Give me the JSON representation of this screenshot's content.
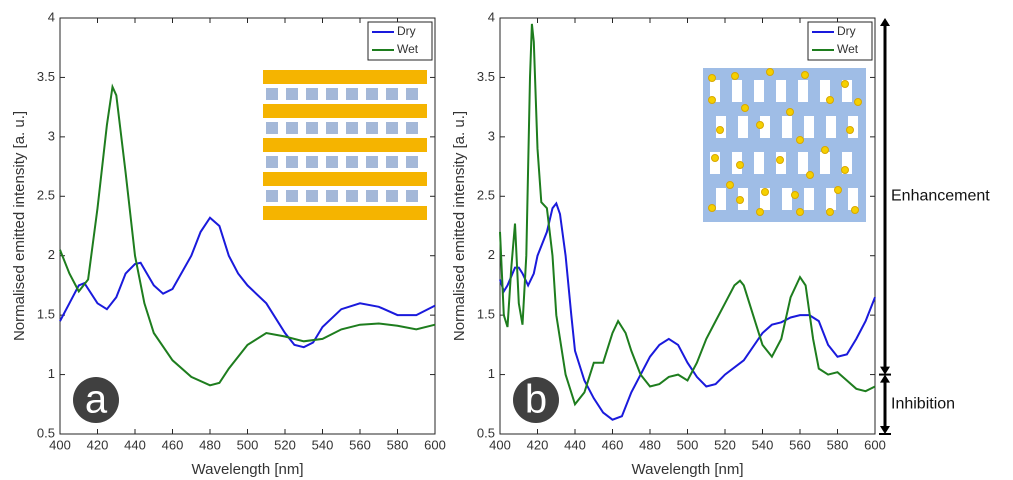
{
  "chart_data": [
    {
      "type": "line",
      "panel_label": "a",
      "xlabel": "Wavelength [nm]",
      "ylabel": "Normalised emitted intensity [a. u.]",
      "xlim": [
        400,
        600
      ],
      "ylim": [
        0.5,
        4
      ],
      "xticks": [
        400,
        420,
        440,
        460,
        480,
        500,
        520,
        540,
        560,
        580,
        600
      ],
      "yticks": [
        0.5,
        1,
        1.5,
        2,
        2.5,
        3,
        3.5,
        4
      ],
      "legend": "upper right",
      "series": [
        {
          "name": "Dry",
          "color": "#1a1adc",
          "x": [
            400,
            405,
            410,
            413,
            420,
            425,
            430,
            435,
            440,
            443,
            450,
            455,
            460,
            470,
            475,
            480,
            485,
            490,
            495,
            500,
            510,
            520,
            525,
            530,
            535,
            540,
            550,
            560,
            570,
            580,
            590,
            600
          ],
          "values": [
            1.45,
            1.6,
            1.75,
            1.77,
            1.6,
            1.55,
            1.65,
            1.85,
            1.93,
            1.94,
            1.75,
            1.68,
            1.72,
            2.0,
            2.2,
            2.32,
            2.25,
            2.0,
            1.85,
            1.75,
            1.6,
            1.35,
            1.25,
            1.23,
            1.27,
            1.4,
            1.55,
            1.6,
            1.57,
            1.5,
            1.5,
            1.58
          ]
        },
        {
          "name": "Wet",
          "color": "#1e7d1e",
          "x": [
            400,
            405,
            410,
            415,
            420,
            425,
            428,
            430,
            435,
            440,
            445,
            450,
            460,
            470,
            480,
            485,
            490,
            500,
            510,
            520,
            530,
            540,
            550,
            560,
            570,
            580,
            590,
            600
          ],
          "values": [
            2.05,
            1.85,
            1.7,
            1.8,
            2.4,
            3.1,
            3.42,
            3.35,
            2.7,
            2.0,
            1.6,
            1.35,
            1.12,
            0.98,
            0.91,
            0.93,
            1.05,
            1.25,
            1.35,
            1.32,
            1.28,
            1.3,
            1.38,
            1.42,
            1.43,
            1.41,
            1.38,
            1.42
          ]
        }
      ]
    },
    {
      "type": "line",
      "panel_label": "b",
      "xlabel": "Wavelength [nm]",
      "ylabel": "Normalised emitted intensity [a. u.]",
      "xlim": [
        400,
        600
      ],
      "ylim": [
        0.5,
        4
      ],
      "xticks": [
        400,
        420,
        440,
        460,
        480,
        500,
        520,
        540,
        560,
        580,
        600
      ],
      "yticks": [
        0.5,
        1,
        1.5,
        2,
        2.5,
        3,
        3.5,
        4
      ],
      "legend": "upper right",
      "annotations": [
        {
          "text": "Enhancement",
          "y_from": 1,
          "y_to": 4
        },
        {
          "text": "Inhibition",
          "y_from": 0.5,
          "y_to": 1
        }
      ],
      "series": [
        {
          "name": "Dry",
          "color": "#1a1adc",
          "x": [
            400,
            402,
            404,
            408,
            410,
            412,
            415,
            418,
            420,
            425,
            428,
            430,
            432,
            435,
            438,
            440,
            445,
            450,
            455,
            460,
            465,
            470,
            480,
            485,
            490,
            495,
            500,
            505,
            510,
            515,
            520,
            530,
            540,
            545,
            550,
            555,
            560,
            565,
            570,
            575,
            580,
            585,
            590,
            595,
            600
          ],
          "values": [
            1.8,
            1.7,
            1.75,
            1.9,
            1.9,
            1.85,
            1.75,
            1.85,
            2.0,
            2.2,
            2.4,
            2.44,
            2.35,
            2.0,
            1.5,
            1.2,
            0.95,
            0.8,
            0.68,
            0.62,
            0.65,
            0.85,
            1.15,
            1.25,
            1.3,
            1.25,
            1.1,
            0.98,
            0.9,
            0.92,
            1.0,
            1.12,
            1.35,
            1.42,
            1.44,
            1.48,
            1.5,
            1.5,
            1.45,
            1.25,
            1.15,
            1.17,
            1.3,
            1.45,
            1.65
          ]
        },
        {
          "name": "Wet",
          "color": "#1e7d1e",
          "x": [
            400,
            402,
            404,
            406,
            408,
            410,
            412,
            414,
            416,
            417,
            418,
            420,
            422,
            425,
            428,
            430,
            435,
            440,
            445,
            450,
            455,
            460,
            463,
            467,
            470,
            475,
            480,
            485,
            490,
            495,
            500,
            505,
            510,
            515,
            520,
            525,
            528,
            530,
            535,
            540,
            545,
            550,
            555,
            560,
            563,
            567,
            570,
            575,
            580,
            585,
            590,
            595,
            600
          ],
          "values": [
            2.2,
            1.5,
            1.4,
            1.9,
            2.27,
            1.6,
            1.42,
            2.0,
            3.5,
            3.95,
            3.8,
            2.9,
            2.45,
            2.4,
            2.0,
            1.5,
            1.0,
            0.75,
            0.85,
            1.1,
            1.1,
            1.35,
            1.45,
            1.35,
            1.2,
            1.0,
            0.9,
            0.92,
            0.98,
            1.0,
            0.95,
            1.1,
            1.3,
            1.45,
            1.6,
            1.75,
            1.79,
            1.75,
            1.5,
            1.25,
            1.15,
            1.3,
            1.65,
            1.82,
            1.75,
            1.3,
            1.05,
            1.0,
            1.02,
            0.95,
            0.88,
            0.86,
            0.9
          ]
        }
      ]
    }
  ]
}
